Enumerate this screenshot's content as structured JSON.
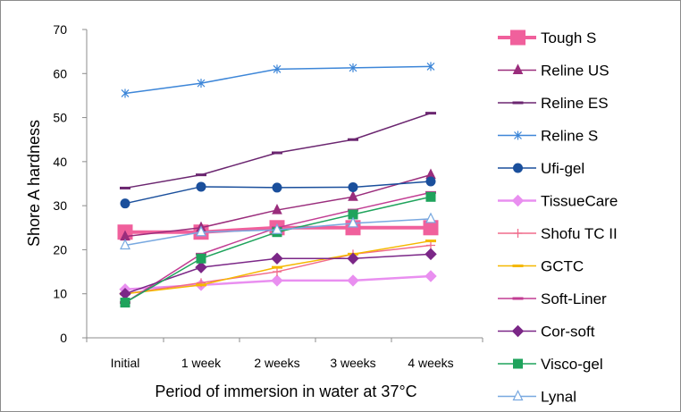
{
  "chart_data": {
    "type": "line",
    "title": "",
    "xlabel": "Period of immersion in water at 37°C",
    "ylabel": "Shore A hardness",
    "ylim": [
      0,
      70
    ],
    "yticks": [
      "0",
      "10",
      "20",
      "30",
      "40",
      "50",
      "60",
      "70"
    ],
    "categories": [
      "Initial",
      "1 week",
      "2 weeks",
      "3 weeks",
      "4 weeks"
    ],
    "grid": false,
    "legend_position": "right",
    "series": [
      {
        "name": "Tough S",
        "values": [
          24,
          24,
          25,
          25,
          25
        ],
        "color": "#f0609c",
        "marker": "square",
        "width": 4
      },
      {
        "name": "Reline US",
        "values": [
          23,
          25,
          29,
          32,
          37
        ],
        "color": "#9a2d7c",
        "marker": "triangle",
        "width": 1.5
      },
      {
        "name": "Reline ES",
        "values": [
          34,
          37,
          42,
          45,
          51
        ],
        "color": "#6b2670",
        "marker": "dash",
        "width": 1.5
      },
      {
        "name": "Reline S",
        "values": [
          55.5,
          57.8,
          61,
          61.3,
          61.6
        ],
        "color": "#3d86d8",
        "marker": "asterisk",
        "width": 1.5
      },
      {
        "name": "Ufi-gel",
        "values": [
          30.5,
          34.3,
          34.1,
          34.2,
          35.5
        ],
        "color": "#1a4f9c",
        "marker": "circle",
        "width": 1.5
      },
      {
        "name": "TissueCare",
        "values": [
          11,
          12,
          13,
          13,
          14
        ],
        "color": "#e98ff0",
        "marker": "diamond",
        "width": 2.5
      },
      {
        "name": "Shofu TC II",
        "values": [
          10,
          12.5,
          15,
          19,
          21
        ],
        "color": "#f06c8c",
        "marker": "plus",
        "width": 1.5
      },
      {
        "name": "GCTC",
        "values": [
          10,
          12,
          16,
          19,
          22
        ],
        "color": "#f5b800",
        "marker": "dash",
        "width": 1.5
      },
      {
        "name": "Soft-Liner",
        "values": [
          8,
          19,
          25,
          29,
          33
        ],
        "color": "#c23d93",
        "marker": "dash",
        "width": 1.5
      },
      {
        "name": "Cor-soft",
        "values": [
          10,
          16,
          18,
          18,
          19
        ],
        "color": "#7b2787",
        "marker": "diamond",
        "width": 1.5
      },
      {
        "name": "Visco-gel",
        "values": [
          8,
          18,
          24,
          28,
          32
        ],
        "color": "#1fa35c",
        "marker": "square",
        "width": 1.5
      },
      {
        "name": "Lynal",
        "values": [
          21,
          24,
          24.5,
          26,
          27
        ],
        "color": "#78a8e0",
        "marker": "open-triangle",
        "width": 1.5
      }
    ]
  }
}
